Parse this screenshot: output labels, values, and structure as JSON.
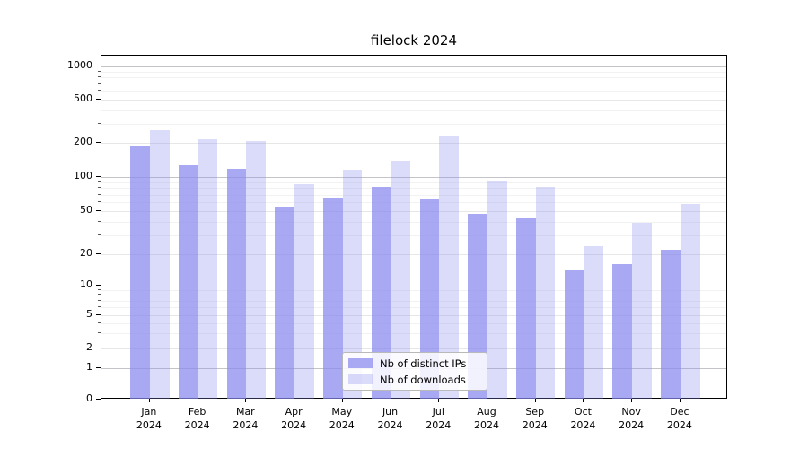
{
  "title": "filelock 2024",
  "chart_data": {
    "type": "bar",
    "title": "filelock 2024",
    "scale": "symlog (log above 1, linear segment 0-1)",
    "grid": true,
    "legend_position": "lower center",
    "xlabel": "",
    "ylabel": "",
    "ylim": [
      0,
      1260
    ],
    "categories": [
      "Jan",
      "Feb",
      "Mar",
      "Apr",
      "May",
      "Jun",
      "Jul",
      "Aug",
      "Sep",
      "Oct",
      "Nov",
      "Dec"
    ],
    "category_year": "2024",
    "y_ticks": [
      0,
      1,
      2,
      5,
      10,
      20,
      50,
      100,
      200,
      500,
      1000
    ],
    "series": [
      {
        "name": "Nb of distinct IPs",
        "color": "rgba(136,136,238,0.72)",
        "values": [
          188,
          126,
          118,
          55,
          66,
          82,
          63,
          47,
          43,
          14,
          16,
          22
        ]
      },
      {
        "name": "Nb of downloads",
        "color": "rgba(136,136,238,0.30)",
        "values": [
          260,
          215,
          207,
          86,
          115,
          140,
          230,
          91,
          82,
          24,
          39,
          58
        ]
      }
    ]
  }
}
